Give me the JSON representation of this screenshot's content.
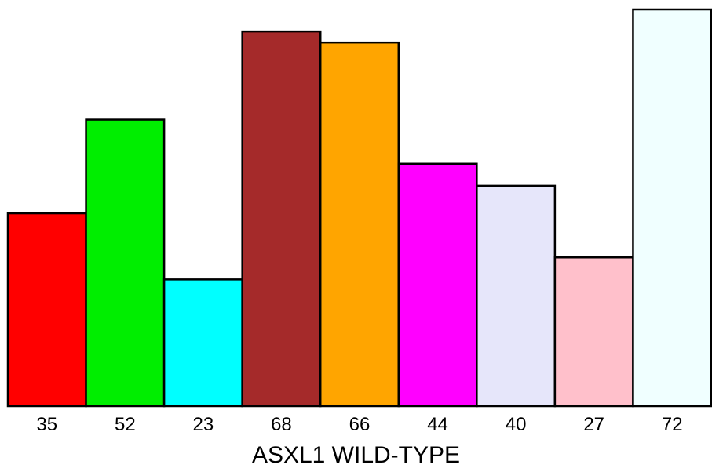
{
  "chart_data": {
    "type": "bar",
    "categories": [
      "35",
      "52",
      "23",
      "68",
      "66",
      "44",
      "40",
      "27",
      "72"
    ],
    "values": [
      35,
      52,
      23,
      68,
      66,
      44,
      40,
      27,
      72
    ],
    "colors": [
      "#ff0000",
      "#00ee00",
      "#00ffff",
      "#a52a2a",
      "#ffa500",
      "#ff00ff",
      "#e6e6fa",
      "#ffc0cb",
      "#f0ffff"
    ],
    "title": "",
    "xlabel": "ASXL1 WILD-TYPE",
    "ylabel": "",
    "ylim": [
      0,
      72
    ],
    "grid": false,
    "legend": "none"
  }
}
